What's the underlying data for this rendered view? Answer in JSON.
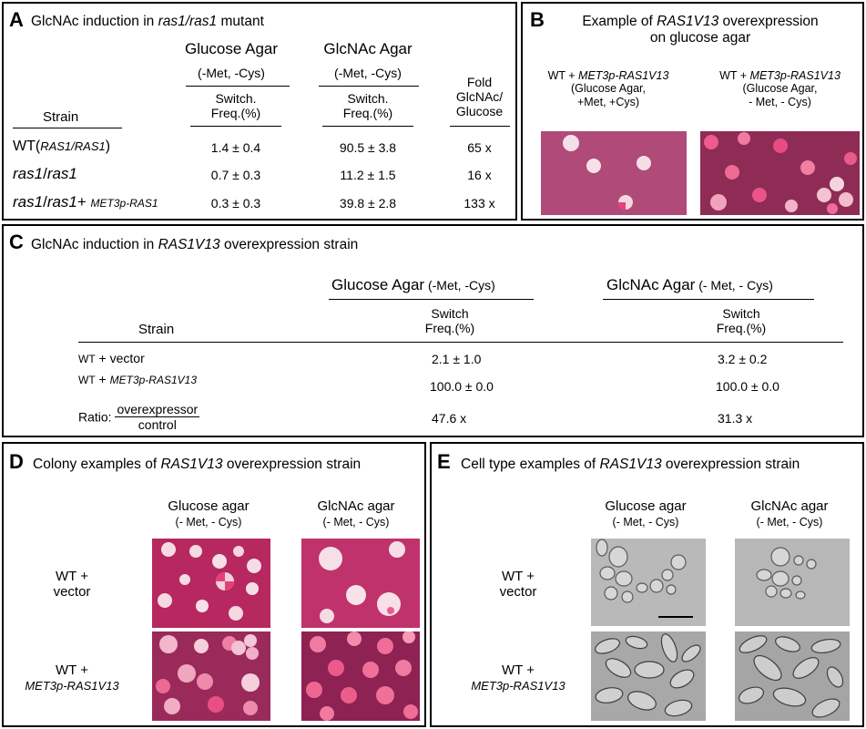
{
  "panel_a": {
    "letter": "A",
    "title_pre": "GlcNAc induction in ",
    "title_em": "ras1/ras1",
    "title_post": " mutant",
    "col_glucose": "Glucose Agar",
    "col_glucose_sub": "(-Met, -Cys)",
    "col_glcnac": "GlcNAc Agar",
    "col_glcnac_sub": "(-Met, -Cys)",
    "switch_l1": "Switch.",
    "switch_l2": "Freq.(%)",
    "fold_l1": "Fold",
    "fold_l2": "GlcNAc/",
    "fold_l3": "Glucose",
    "strain_header": "Strain",
    "rows": [
      {
        "strain_pre": "WT(",
        "strain_em": "RAS1/RAS1",
        "strain_post": ")",
        "glucose": "1.4 ± 0.4",
        "glcnac": "90.5 ± 3.8",
        "fold": "65 x"
      },
      {
        "strain_em1": "ras1",
        "strain_mid": "/",
        "strain_em2": "ras1",
        "glucose": "0.7 ± 0.3",
        "glcnac": "11.2 ± 1.5",
        "fold": "16 x"
      },
      {
        "strain_em1": "ras1",
        "strain_mid": "/",
        "strain_em2": "ras1",
        "strain_plus": "+ ",
        "strain_small": "MET3p-RAS1",
        "glucose": "0.3 ± 0.3",
        "glcnac": "39.8 ± 2.8",
        "fold": "133 x"
      }
    ]
  },
  "panel_b": {
    "letter": "B",
    "title_pre": "Example of ",
    "title_em": "RAS1V13",
    "title_post": " overexpression",
    "title_l2": "on glucose agar",
    "left_l1_pre": "WT + ",
    "left_l1_em": "MET3p-RAS1V13",
    "left_l2": "(Glucose Agar,",
    "left_l3": "+Met, +Cys)",
    "right_l1_pre": "WT + ",
    "right_l1_em": "MET3p-RAS1V13",
    "right_l2": "(Glucose Agar,",
    "right_l3": "- Met, - Cys)"
  },
  "panel_c": {
    "letter": "C",
    "title_pre": "GlcNAc induction in ",
    "title_em": "RAS1V13",
    "title_post": " overexpression strain",
    "col_glucose": "Glucose Agar",
    "col_glucose_sub": " (-Met, -Cys)",
    "col_glcnac": "GlcNAc Agar",
    "col_glcnac_sub": " (- Met, - Cys)",
    "switch_l1": "Switch",
    "switch_l2": "Freq.(%)",
    "strain_header": "Strain",
    "rows": [
      {
        "strain_a": "WT",
        "strain_b": " + vector",
        "glucose": "2.1 ± 1.0",
        "glcnac": "3.2 ± 0.2"
      },
      {
        "strain_a": "WT",
        "strain_b": " + ",
        "strain_em": "MET3p-RAS1V13",
        "glucose": "100.0 ± 0.0",
        "glcnac": "100.0 ± 0.0"
      }
    ],
    "ratio_label": "Ratio: ",
    "ratio_num": "overexpressor",
    "ratio_den": "control",
    "ratio_glucose": "47.6 x",
    "ratio_glcnac": "31.3 x"
  },
  "panel_d": {
    "letter": "D",
    "title_pre": "Colony examples of ",
    "title_em": "RAS1V13",
    "title_post": " overexpression strain",
    "col1": "Glucose agar",
    "col1_sub": "(- Met, - Cys)",
    "col2": "GlcNAc agar",
    "col2_sub": "(- Met, - Cys)",
    "row1_l1": "WT +",
    "row1_l2": "vector",
    "row2_l1": "WT +",
    "row2_l2": "MET3p-RAS1V13"
  },
  "panel_e": {
    "letter": "E",
    "title_pre": "Cell type examples of ",
    "title_em": "RAS1V13",
    "title_post": " overexpression strain",
    "col1": "Glucose agar",
    "col1_sub": "(- Met, - Cys)",
    "col2": "GlcNAc agar",
    "col2_sub": "(- Met, - Cys)",
    "row1_l1": "WT +",
    "row1_l2": "vector",
    "row2_l1": "WT +",
    "row2_l2": "MET3p-RAS1V13"
  },
  "colors": {
    "agar_glucose_met": "#b04a78",
    "agar_dark": "#9c2e5c",
    "agar_glcnac": "#c2306a",
    "colony_white": "#f7dde6",
    "colony_pink": "#e83f79",
    "dic_background": "#b9b9b9"
  }
}
